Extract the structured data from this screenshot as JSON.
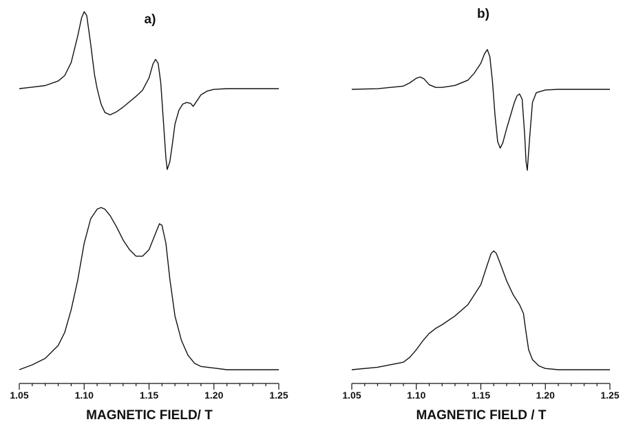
{
  "chart_data": [
    {
      "type": "line",
      "title": "a)",
      "xlabel": "MAGNETIC FIELD/ T",
      "xlim": [
        1.05,
        1.25
      ],
      "xticks": [
        "1.05",
        "1.10",
        "1.15",
        "1.20",
        "1.25"
      ],
      "series": [
        {
          "x": [
            1.05,
            1.06,
            1.07,
            1.08,
            1.085,
            1.09,
            1.095,
            1.098,
            1.1,
            1.102,
            1.105,
            1.108,
            1.11,
            1.113,
            1.116,
            1.12,
            1.125,
            1.13,
            1.135,
            1.14,
            1.145,
            1.15,
            1.153,
            1.155,
            1.157,
            1.159,
            1.161,
            1.163,
            1.164,
            1.166,
            1.168,
            1.17,
            1.173,
            1.176,
            1.179,
            1.182,
            1.184,
            1.186,
            1.19,
            1.195,
            1.2,
            1.21,
            1.22,
            1.25
          ],
          "y": [
            0.0,
            0.02,
            0.04,
            0.1,
            0.17,
            0.34,
            0.68,
            0.92,
            1.0,
            0.95,
            0.58,
            0.18,
            0.0,
            -0.2,
            -0.31,
            -0.34,
            -0.3,
            -0.24,
            -0.17,
            -0.1,
            -0.02,
            0.14,
            0.32,
            0.38,
            0.33,
            0.08,
            -0.4,
            -0.9,
            -1.05,
            -0.95,
            -0.72,
            -0.46,
            -0.28,
            -0.2,
            -0.18,
            -0.19,
            -0.23,
            -0.18,
            -0.08,
            -0.03,
            -0.01,
            0.0,
            0.0,
            0.0
          ]
        },
        {
          "x": [
            1.05,
            1.06,
            1.07,
            1.08,
            1.085,
            1.09,
            1.095,
            1.1,
            1.105,
            1.11,
            1.113,
            1.116,
            1.12,
            1.125,
            1.13,
            1.135,
            1.14,
            1.145,
            1.15,
            1.155,
            1.158,
            1.16,
            1.163,
            1.166,
            1.17,
            1.175,
            1.18,
            1.185,
            1.19,
            1.2,
            1.21,
            1.25
          ],
          "y": [
            0.0,
            0.03,
            0.07,
            0.15,
            0.23,
            0.37,
            0.55,
            0.78,
            0.93,
            0.99,
            1.0,
            0.99,
            0.95,
            0.88,
            0.8,
            0.74,
            0.7,
            0.7,
            0.74,
            0.84,
            0.9,
            0.89,
            0.78,
            0.56,
            0.33,
            0.18,
            0.09,
            0.04,
            0.02,
            0.01,
            0.0,
            0.0
          ]
        }
      ]
    },
    {
      "type": "line",
      "title": "b)",
      "xlabel": "MAGNETIC FIELD / T",
      "xlim": [
        1.05,
        1.25
      ],
      "xticks": [
        "1.05",
        "1.10",
        "1.15",
        "1.20",
        "1.25"
      ],
      "series": [
        {
          "x": [
            1.05,
            1.07,
            1.09,
            1.095,
            1.1,
            1.103,
            1.106,
            1.11,
            1.115,
            1.12,
            1.13,
            1.14,
            1.145,
            1.15,
            1.153,
            1.155,
            1.157,
            1.159,
            1.161,
            1.163,
            1.165,
            1.167,
            1.17,
            1.173,
            1.176,
            1.178,
            1.18,
            1.182,
            1.184,
            1.185,
            1.186,
            1.188,
            1.19,
            1.193,
            1.2,
            1.21,
            1.25
          ],
          "y": [
            0.0,
            0.01,
            0.05,
            0.1,
            0.17,
            0.19,
            0.16,
            0.07,
            0.03,
            0.03,
            0.06,
            0.14,
            0.25,
            0.4,
            0.55,
            0.61,
            0.5,
            0.12,
            -0.4,
            -0.8,
            -0.9,
            -0.82,
            -0.6,
            -0.4,
            -0.2,
            -0.1,
            -0.07,
            -0.15,
            -0.7,
            -1.1,
            -1.24,
            -0.7,
            -0.2,
            -0.05,
            -0.01,
            0.0,
            0.0
          ]
        },
        {
          "x": [
            1.05,
            1.07,
            1.09,
            1.095,
            1.1,
            1.105,
            1.11,
            1.115,
            1.12,
            1.13,
            1.14,
            1.15,
            1.155,
            1.158,
            1.16,
            1.162,
            1.165,
            1.17,
            1.175,
            1.18,
            1.183,
            1.185,
            1.187,
            1.19,
            1.195,
            1.2,
            1.21,
            1.25
          ],
          "y": [
            0.0,
            0.02,
            0.06,
            0.1,
            0.16,
            0.23,
            0.29,
            0.33,
            0.36,
            0.43,
            0.52,
            0.68,
            0.84,
            0.93,
            0.95,
            0.93,
            0.85,
            0.71,
            0.6,
            0.52,
            0.45,
            0.3,
            0.16,
            0.08,
            0.03,
            0.01,
            0.0,
            0.0
          ]
        }
      ]
    }
  ]
}
